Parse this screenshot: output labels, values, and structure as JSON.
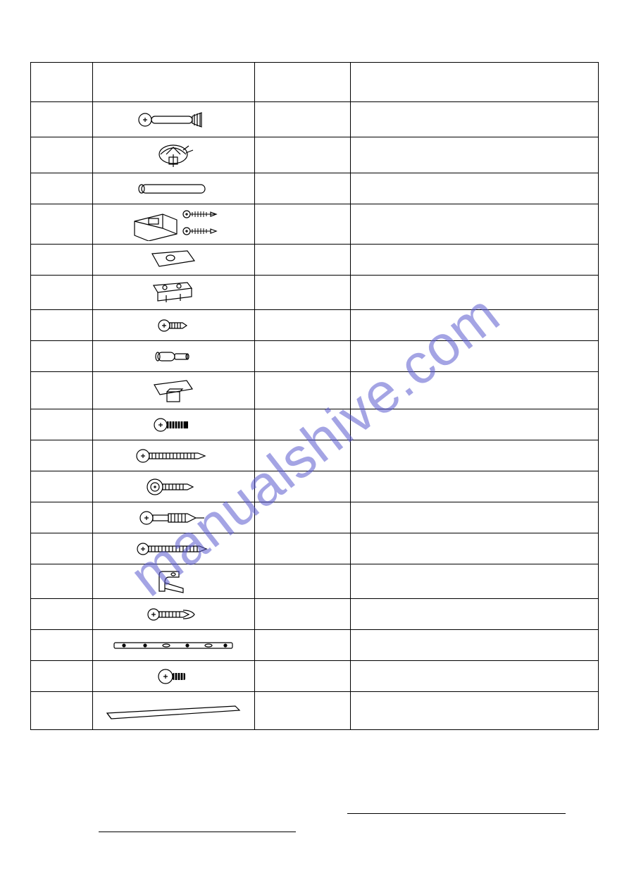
{
  "table": {
    "header": {
      "a": "",
      "b": "",
      "c": "",
      "d": ""
    },
    "rows": [
      {
        "a": "",
        "c": "",
        "d": "",
        "icon": "bolt-cam",
        "h": "r-50"
      },
      {
        "a": "",
        "c": "",
        "d": "",
        "icon": "cam-lock",
        "h": "r-48"
      },
      {
        "a": "",
        "c": "",
        "d": "",
        "icon": "dowel",
        "h": "r-44"
      },
      {
        "a": "",
        "c": "",
        "d": "",
        "icon": "magnet-catch",
        "h": "r-56"
      },
      {
        "a": "",
        "c": "",
        "d": "",
        "icon": "plate-oval",
        "h": "r-44"
      },
      {
        "a": "",
        "c": "",
        "d": "",
        "icon": "hinge-plate",
        "h": "r-48"
      },
      {
        "a": "",
        "c": "",
        "d": "",
        "icon": "screw-short",
        "h": "r-44"
      },
      {
        "a": "",
        "c": "",
        "d": "",
        "icon": "shelf-pin",
        "h": "r-44"
      },
      {
        "a": "",
        "c": "",
        "d": "",
        "icon": "knob-plate",
        "h": "r-50"
      },
      {
        "a": "",
        "c": "",
        "d": "",
        "icon": "machine-screw",
        "h": "r-44"
      },
      {
        "a": "",
        "c": "",
        "d": "",
        "icon": "wood-screw-long",
        "h": "r-44"
      },
      {
        "a": "",
        "c": "",
        "d": "",
        "icon": "washer-screw",
        "h": "r-44"
      },
      {
        "a": "",
        "c": "",
        "d": "",
        "icon": "wall-anchor-screw",
        "h": "r-44"
      },
      {
        "a": "",
        "c": "",
        "d": "",
        "icon": "wood-screw-long2",
        "h": "r-44"
      },
      {
        "a": "",
        "c": "",
        "d": "",
        "icon": "bracket-clip",
        "h": "r-48"
      },
      {
        "a": "",
        "c": "",
        "d": "",
        "icon": "screw-anchor",
        "h": "r-44"
      },
      {
        "a": "",
        "c": "",
        "d": "",
        "icon": "drawer-slide",
        "h": "r-44"
      },
      {
        "a": "",
        "c": "",
        "d": "",
        "icon": "pan-screw",
        "h": "r-44"
      },
      {
        "a": "",
        "c": "",
        "d": "",
        "icon": "long-strip",
        "h": "r-54"
      }
    ]
  },
  "watermark_text": "manualshive.com",
  "colors": {
    "border": "#000000",
    "bg": "#ffffff",
    "watermark": "#5a5acf"
  }
}
